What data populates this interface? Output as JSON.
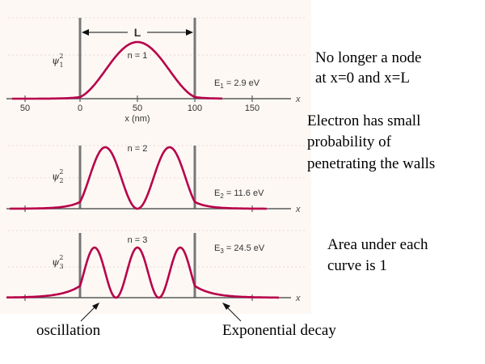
{
  "plot": {
    "top_axis_label": "L",
    "x_tick_labels": [
      "50",
      "0",
      "50",
      "100",
      "150"
    ],
    "x_axis_unit_label": "x (nm)",
    "x_axis_symbol": "x"
  },
  "panels": [
    {
      "n_label": "n = 1",
      "psi": "ψ",
      "psi_sub": "1",
      "psi_sup": "2",
      "energy": "E",
      "energy_sub": "1",
      "energy_value": " = 2.9 eV"
    },
    {
      "n_label": "n = 2",
      "psi": "ψ",
      "psi_sub": "2",
      "psi_sup": "2",
      "energy": "E",
      "energy_sub": "2",
      "energy_value": " = 11.6 eV"
    },
    {
      "n_label": "n = 3",
      "psi": "ψ",
      "psi_sub": "3",
      "psi_sup": "2",
      "energy": "E",
      "energy_sub": "3",
      "energy_value": " = 24.5 eV"
    }
  ],
  "notes": {
    "node_line1": "No longer a node",
    "node_line2": "at x=0 and x=L",
    "penetrate_line1": "Electron has small",
    "penetrate_line2": "probability of",
    "penetrate_line3": "penetrating the walls",
    "area_line1": "Area under each",
    "area_line2": "curve is 1",
    "oscillation": "oscillation",
    "decay": "Exponential decay"
  },
  "colors": {
    "curve": "#b8004a",
    "panel_background": "#fdf8f4"
  }
}
